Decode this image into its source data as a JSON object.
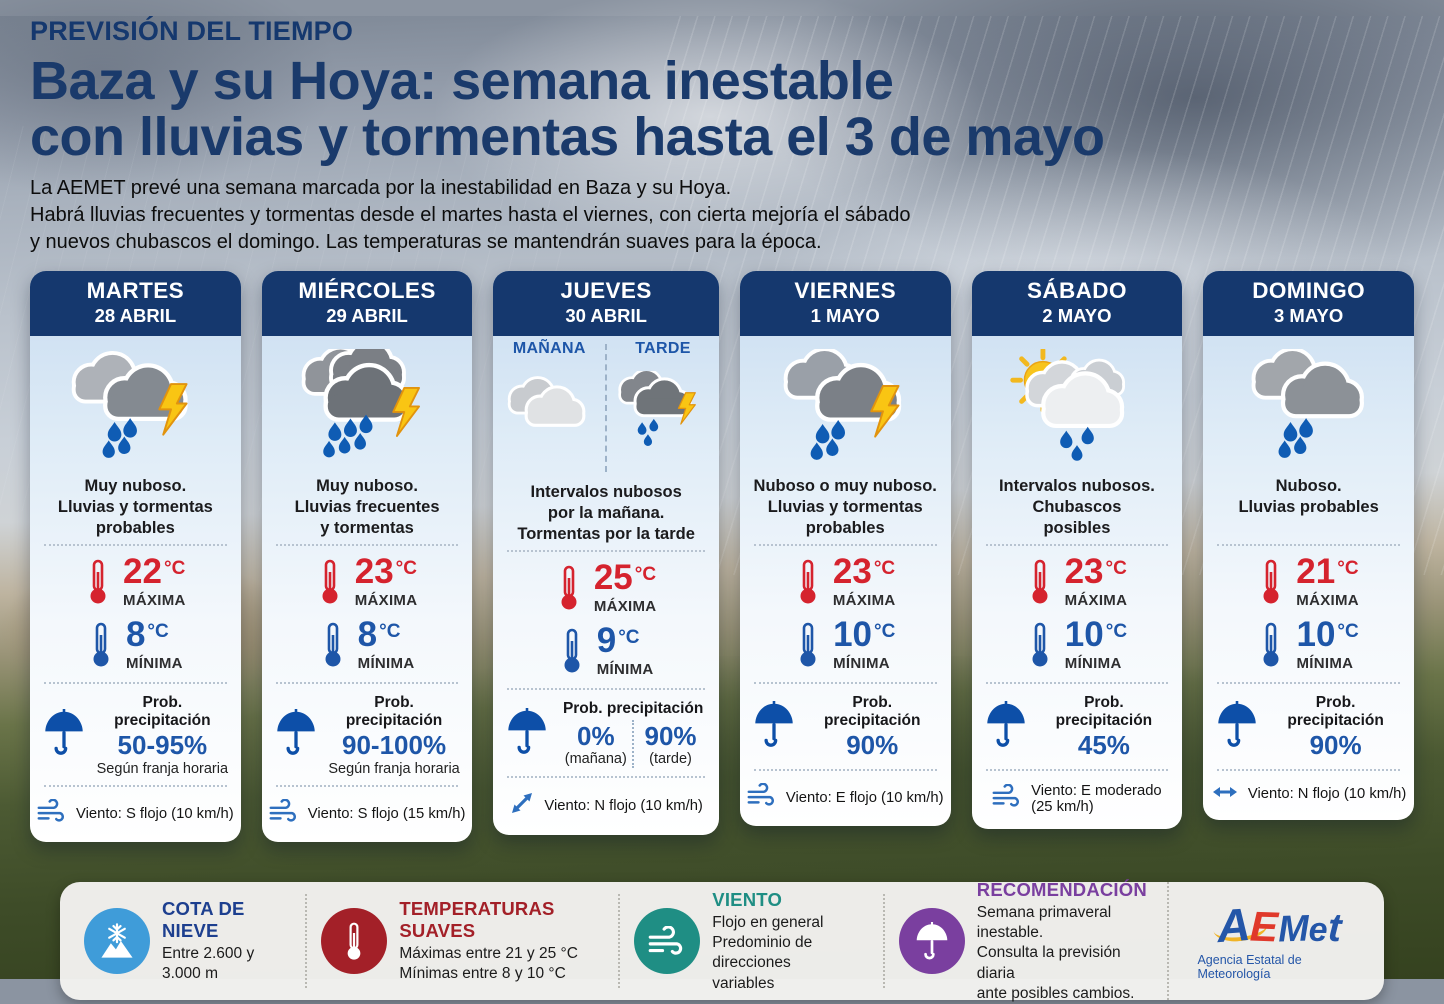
{
  "header": {
    "kicker": "PREVISIÓN DEL TIEMPO",
    "title": "Baza y su Hoya: semana inestable\ncon lluvias y tormentas hasta el 3 de mayo",
    "intro": "La AEMET prevé una semana marcada por la inestabilidad en Baza y su Hoya.\nHabrá lluvias frecuentes y tormentas desde el martes hasta el viernes, con cierta mejoría el sábado\ny nuevos chubascos el domingo. Las temperaturas se mantendrán suaves para la época."
  },
  "colors": {
    "header_navy": "#15386e",
    "title_blue": "#1a3a6b",
    "max_red": "#d5232e",
    "min_blue": "#1e56a8",
    "precip_blue": "#0d4fa8",
    "wind_blue": "#2e6fbe"
  },
  "cards": [
    {
      "day": "MARTES",
      "date": "28 ABRIL",
      "icon": "storm",
      "description": "Muy nuboso.\nLluvias y tormentas\nprobables",
      "temp_max": {
        "value": "22",
        "unit": "°C",
        "label": "MÁXIMA"
      },
      "temp_min": {
        "value": "8",
        "unit": "°C",
        "label": "MÍNIMA"
      },
      "precipitation": {
        "label": "Prob. precipitación",
        "value": "50-95%",
        "note": "Según franja horaria"
      },
      "wind": {
        "icon": "wind-lines",
        "text": "Viento: S flojo (10 km/h)"
      }
    },
    {
      "day": "MIÉRCOLES",
      "date": "29 ABRIL",
      "icon": "storm-heavy",
      "description": "Muy nuboso.\nLluvias frecuentes\ny tormentas",
      "temp_max": {
        "value": "23",
        "unit": "°C",
        "label": "MÁXIMA"
      },
      "temp_min": {
        "value": "8",
        "unit": "°C",
        "label": "MÍNIMA"
      },
      "precipitation": {
        "label": "Prob. precipitación",
        "value": "90-100%",
        "note": "Según franja horaria"
      },
      "wind": {
        "icon": "wind-lines",
        "text": "Viento: S flojo (15 km/h)"
      }
    },
    {
      "day": "JUEVES",
      "date": "30 ABRIL",
      "split_icons": {
        "morning_label": "MAÑANA",
        "afternoon_label": "TARDE",
        "morning_icon": "cloudy",
        "afternoon_icon": "storm-small"
      },
      "description": "Intervalos nubosos\npor la mañana.\nTormentas por la tarde",
      "temp_max": {
        "value": "25",
        "unit": "°C",
        "label": "MÁXIMA"
      },
      "temp_min": {
        "value": "9",
        "unit": "°C",
        "label": "MÍNIMA"
      },
      "precipitation": {
        "label": "Prob. precipitación",
        "split": [
          {
            "value": "0%",
            "note": "(mañana)"
          },
          {
            "value": "90%",
            "note": "(tarde)"
          }
        ]
      },
      "wind": {
        "icon": "arrow-diagonal",
        "text": "Viento: N flojo (10 km/h)"
      }
    },
    {
      "day": "VIERNES",
      "date": "1 MAYO",
      "icon": "storm-dark",
      "description": "Nuboso o muy nuboso.\nLluvias y tormentas\nprobables",
      "temp_max": {
        "value": "23",
        "unit": "°C",
        "label": "MÁXIMA"
      },
      "temp_min": {
        "value": "10",
        "unit": "°C",
        "label": "MÍNIMA"
      },
      "precipitation": {
        "label": "Prob. precipitación",
        "value": "90%"
      },
      "wind": {
        "icon": "wind-lines",
        "text": "Viento: E flojo (10 km/h)"
      }
    },
    {
      "day": "SÁBADO",
      "date": "2 MAYO",
      "icon": "sun-cloud-rain",
      "description": "Intervalos nubosos.\nChubascos\nposibles",
      "temp_max": {
        "value": "23",
        "unit": "°C",
        "label": "MÁXIMA"
      },
      "temp_min": {
        "value": "10",
        "unit": "°C",
        "label": "MÍNIMA"
      },
      "precipitation": {
        "label": "Prob. precipitación",
        "value": "45%"
      },
      "wind": {
        "icon": "wind-lines",
        "text": "Viento: E moderado\n(25 km/h)"
      }
    },
    {
      "day": "DOMINGO",
      "date": "3 MAYO",
      "icon": "rain",
      "description": "Nuboso.\nLluvias probables",
      "temp_max": {
        "value": "21",
        "unit": "°C",
        "label": "MÁXIMA"
      },
      "temp_min": {
        "value": "10",
        "unit": "°C",
        "label": "MÍNIMA"
      },
      "precipitation": {
        "label": "Prob. precipitación",
        "value": "90%"
      },
      "wind": {
        "icon": "arrow-horizontal",
        "text": "Viento: N flojo (10 km/h)"
      }
    }
  ],
  "footer": {
    "items": [
      {
        "title": "COTA DE NIEVE",
        "icon": "snow-mountain",
        "color": "#3f9cd9",
        "title_color": "#1d3f8f",
        "text": "Entre 2.600 y 3.000 m"
      },
      {
        "title": "TEMPERATURAS SUAVES",
        "icon": "thermometer",
        "color": "#a32028",
        "title_color": "#a32028",
        "text": "Máximas entre 21 y 25 °C\nMínimas entre 8 y 10 °C"
      },
      {
        "title": "VIENTO",
        "icon": "wind",
        "color": "#1f8e84",
        "title_color": "#1f8e84",
        "text": "Flojo en general\nPredominio de direcciones\nvariables"
      },
      {
        "title": "RECOMENDACIÓN",
        "icon": "umbrella",
        "color": "#7a3f9f",
        "title_color": "#7a3f9f",
        "text": "Semana primaveral inestable.\nConsulta la previsión diaria\nante posibles cambios."
      }
    ],
    "logo": {
      "letters": [
        {
          "ch": "A",
          "color": "#2456a8"
        },
        {
          "ch": "E",
          "color": "#e0392b"
        },
        {
          "ch": "M",
          "color": "#2456a8"
        },
        {
          "ch": "e",
          "color": "#2456a8"
        },
        {
          "ch": "t",
          "color": "#2456a8"
        }
      ],
      "tagline": "Agencia Estatal de Meteorología"
    }
  }
}
